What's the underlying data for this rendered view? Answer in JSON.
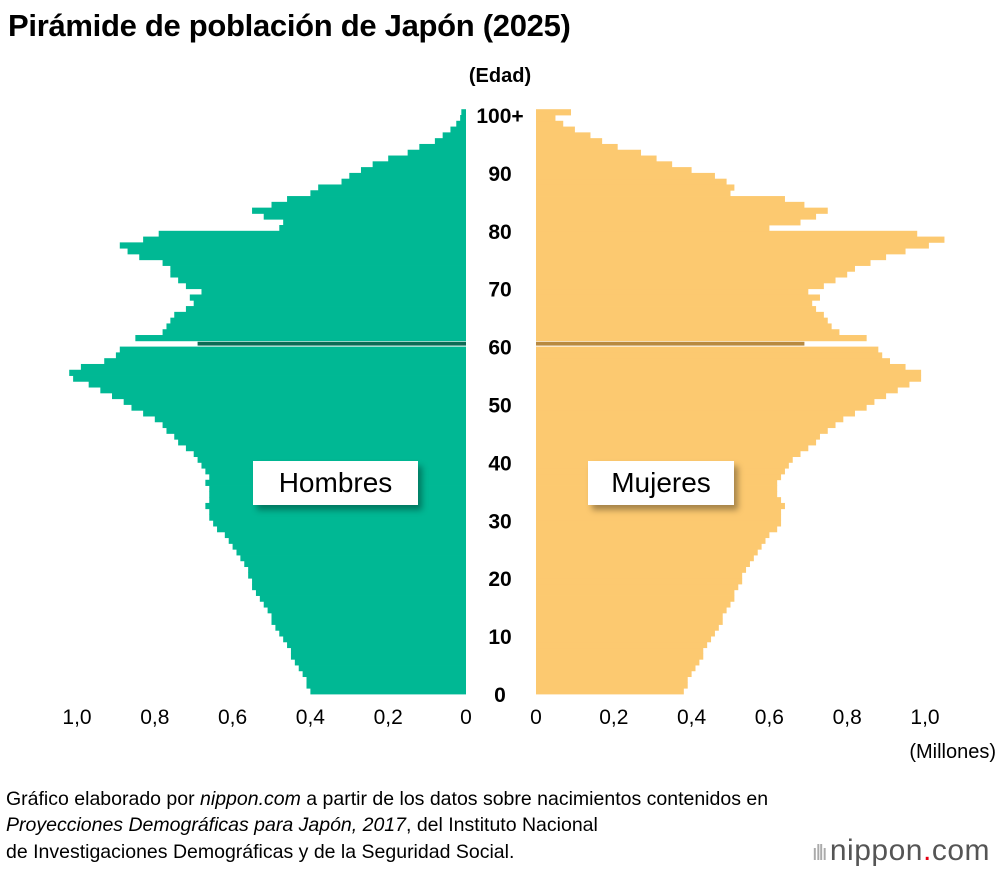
{
  "title": "Pirámide de población de Japón (2025)",
  "chart_data": {
    "type": "bar",
    "orientation": "horizontal-pyramid",
    "y_axis_label": "(Edad)",
    "x_axis_label": "(Millones)",
    "y_tick_labels": [
      "0",
      "10",
      "20",
      "30",
      "40",
      "50",
      "60",
      "70",
      "80",
      "90",
      "100+"
    ],
    "x_tick_labels_left": [
      "1,0",
      "0,8",
      "0,6",
      "0,4",
      "0,2",
      "0"
    ],
    "x_tick_labels_right": [
      "0",
      "0,2",
      "0,4",
      "0,6",
      "0,8",
      "1,0"
    ],
    "x_ticks": [
      1.0,
      0.8,
      0.6,
      0.4,
      0.2,
      0
    ],
    "xlim": [
      0,
      1.0
    ],
    "ages": "0 to 100+ (single years)",
    "highlight_age": 60,
    "series": [
      {
        "name": "Hombres",
        "color": "#00b894",
        "highlight_color": "#0c6b55",
        "values": [
          0.4,
          0.41,
          0.41,
          0.42,
          0.43,
          0.44,
          0.45,
          0.45,
          0.46,
          0.47,
          0.48,
          0.49,
          0.5,
          0.5,
          0.51,
          0.52,
          0.53,
          0.54,
          0.55,
          0.55,
          0.56,
          0.56,
          0.57,
          0.58,
          0.59,
          0.6,
          0.61,
          0.62,
          0.64,
          0.65,
          0.66,
          0.66,
          0.67,
          0.66,
          0.66,
          0.66,
          0.67,
          0.66,
          0.67,
          0.68,
          0.69,
          0.7,
          0.72,
          0.74,
          0.75,
          0.77,
          0.78,
          0.8,
          0.83,
          0.86,
          0.88,
          0.91,
          0.94,
          0.97,
          1.01,
          1.02,
          0.99,
          0.93,
          0.9,
          0.89,
          0.69,
          0.85,
          0.78,
          0.77,
          0.76,
          0.75,
          0.72,
          0.7,
          0.71,
          0.68,
          0.72,
          0.74,
          0.76,
          0.76,
          0.78,
          0.84,
          0.87,
          0.89,
          0.83,
          0.79,
          0.48,
          0.47,
          0.52,
          0.55,
          0.5,
          0.46,
          0.4,
          0.38,
          0.32,
          0.3,
          0.27,
          0.24,
          0.2,
          0.15,
          0.12,
          0.08,
          0.06,
          0.04,
          0.025,
          0.015,
          0.012
        ]
      },
      {
        "name": "Mujeres",
        "color": "#fcc970",
        "highlight_color": "#b8893f",
        "values": [
          0.38,
          0.39,
          0.39,
          0.4,
          0.41,
          0.42,
          0.43,
          0.43,
          0.44,
          0.45,
          0.46,
          0.47,
          0.48,
          0.48,
          0.49,
          0.5,
          0.51,
          0.51,
          0.52,
          0.53,
          0.53,
          0.54,
          0.55,
          0.56,
          0.57,
          0.58,
          0.59,
          0.6,
          0.62,
          0.63,
          0.63,
          0.63,
          0.64,
          0.63,
          0.62,
          0.62,
          0.62,
          0.63,
          0.64,
          0.65,
          0.66,
          0.68,
          0.7,
          0.72,
          0.73,
          0.75,
          0.77,
          0.79,
          0.82,
          0.85,
          0.87,
          0.9,
          0.93,
          0.96,
          0.99,
          0.99,
          0.95,
          0.91,
          0.89,
          0.88,
          0.69,
          0.85,
          0.78,
          0.76,
          0.75,
          0.74,
          0.72,
          0.71,
          0.73,
          0.7,
          0.74,
          0.77,
          0.8,
          0.82,
          0.86,
          0.9,
          0.95,
          1.01,
          1.05,
          0.98,
          0.6,
          0.68,
          0.72,
          0.75,
          0.69,
          0.64,
          0.5,
          0.51,
          0.49,
          0.46,
          0.4,
          0.35,
          0.31,
          0.27,
          0.21,
          0.17,
          0.14,
          0.1,
          0.07,
          0.05,
          0.09
        ]
      }
    ]
  },
  "footer": {
    "line1_a": "Gráfico elaborado por ",
    "line1_b": "nippon.com",
    "line1_c": " a partir de los datos sobre nacimientos contenidos en",
    "line2_a": "Proyecciones Demográficas para Japón, 2017",
    "line2_b": ", del Instituto Nacional",
    "line3": "de Investigaciones Demográficas y de la Seguridad Social."
  },
  "logo": {
    "text_a": "nippon",
    "text_b": ".",
    "text_c": "com"
  }
}
